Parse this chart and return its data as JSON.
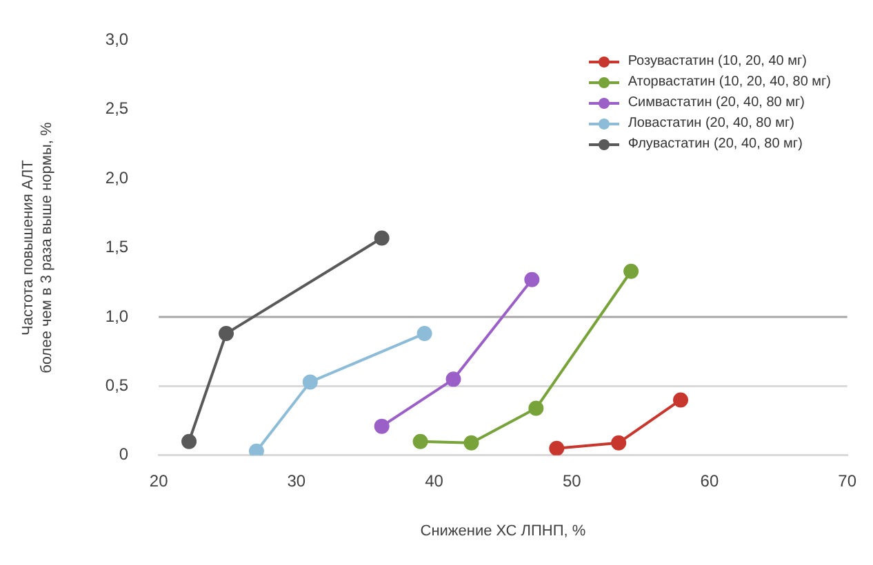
{
  "chart_data": {
    "type": "line",
    "xlabel": "Снижение ХС ЛПНП, %",
    "ylabel": "Частота повышения АЛТ\nболее чем в 3 раза выше нормы, %",
    "xlim": [
      20,
      70
    ],
    "xticks": [
      20,
      30,
      40,
      50,
      60,
      70
    ],
    "ylim": [
      0,
      3
    ],
    "yticks": [
      0,
      {
        "value": 0.5,
        "label": "0,5"
      },
      {
        "value": 1,
        "label": "1,0"
      },
      {
        "value": 1.5,
        "label": "1,5"
      },
      {
        "value": 2,
        "label": "2,0"
      },
      {
        "value": 2.5,
        "label": "2,5"
      },
      {
        "value": 3,
        "label": "3,0"
      }
    ],
    "grid": false,
    "legend": "top right",
    "marker": "circle",
    "line_style": "solid",
    "ref_lines": [
      {
        "axis": "y",
        "value": 0.5,
        "color": "#d9d9d9"
      },
      {
        "axis": "y",
        "value": 1,
        "color": "#a6a6a6"
      }
    ],
    "series": [
      {
        "name": "Розувастатин (10, 20, 40 мг)",
        "color": "#c8372d",
        "x": [
          48.9,
          53.4,
          57.9
        ],
        "values": [
          0.05,
          0.09,
          0.4
        ]
      },
      {
        "name": "Аторвастатин (10, 20, 40, 80 мг)",
        "color": "#77a33a",
        "x": [
          39,
          42.7,
          47.4,
          54.3
        ],
        "values": [
          0.1,
          0.09,
          0.34,
          1.33
        ]
      },
      {
        "name": "Симвастатин (20, 40, 80 мг)",
        "color": "#9b5fc8",
        "x": [
          36.2,
          41.4,
          47.1
        ],
        "values": [
          0.21,
          0.55,
          1.27
        ]
      },
      {
        "name": "Ловастатин (20, 40, 80 мг)",
        "color": "#8cbcd8",
        "x": [
          27.1,
          31,
          39.3
        ],
        "values": [
          0.03,
          0.53,
          0.88
        ]
      },
      {
        "name": "Флувастатин (20, 40, 80 мг)",
        "color": "#595959",
        "x": [
          22.2,
          24.9,
          36.2
        ],
        "values": [
          0.1,
          0.88,
          1.57
        ]
      }
    ]
  }
}
